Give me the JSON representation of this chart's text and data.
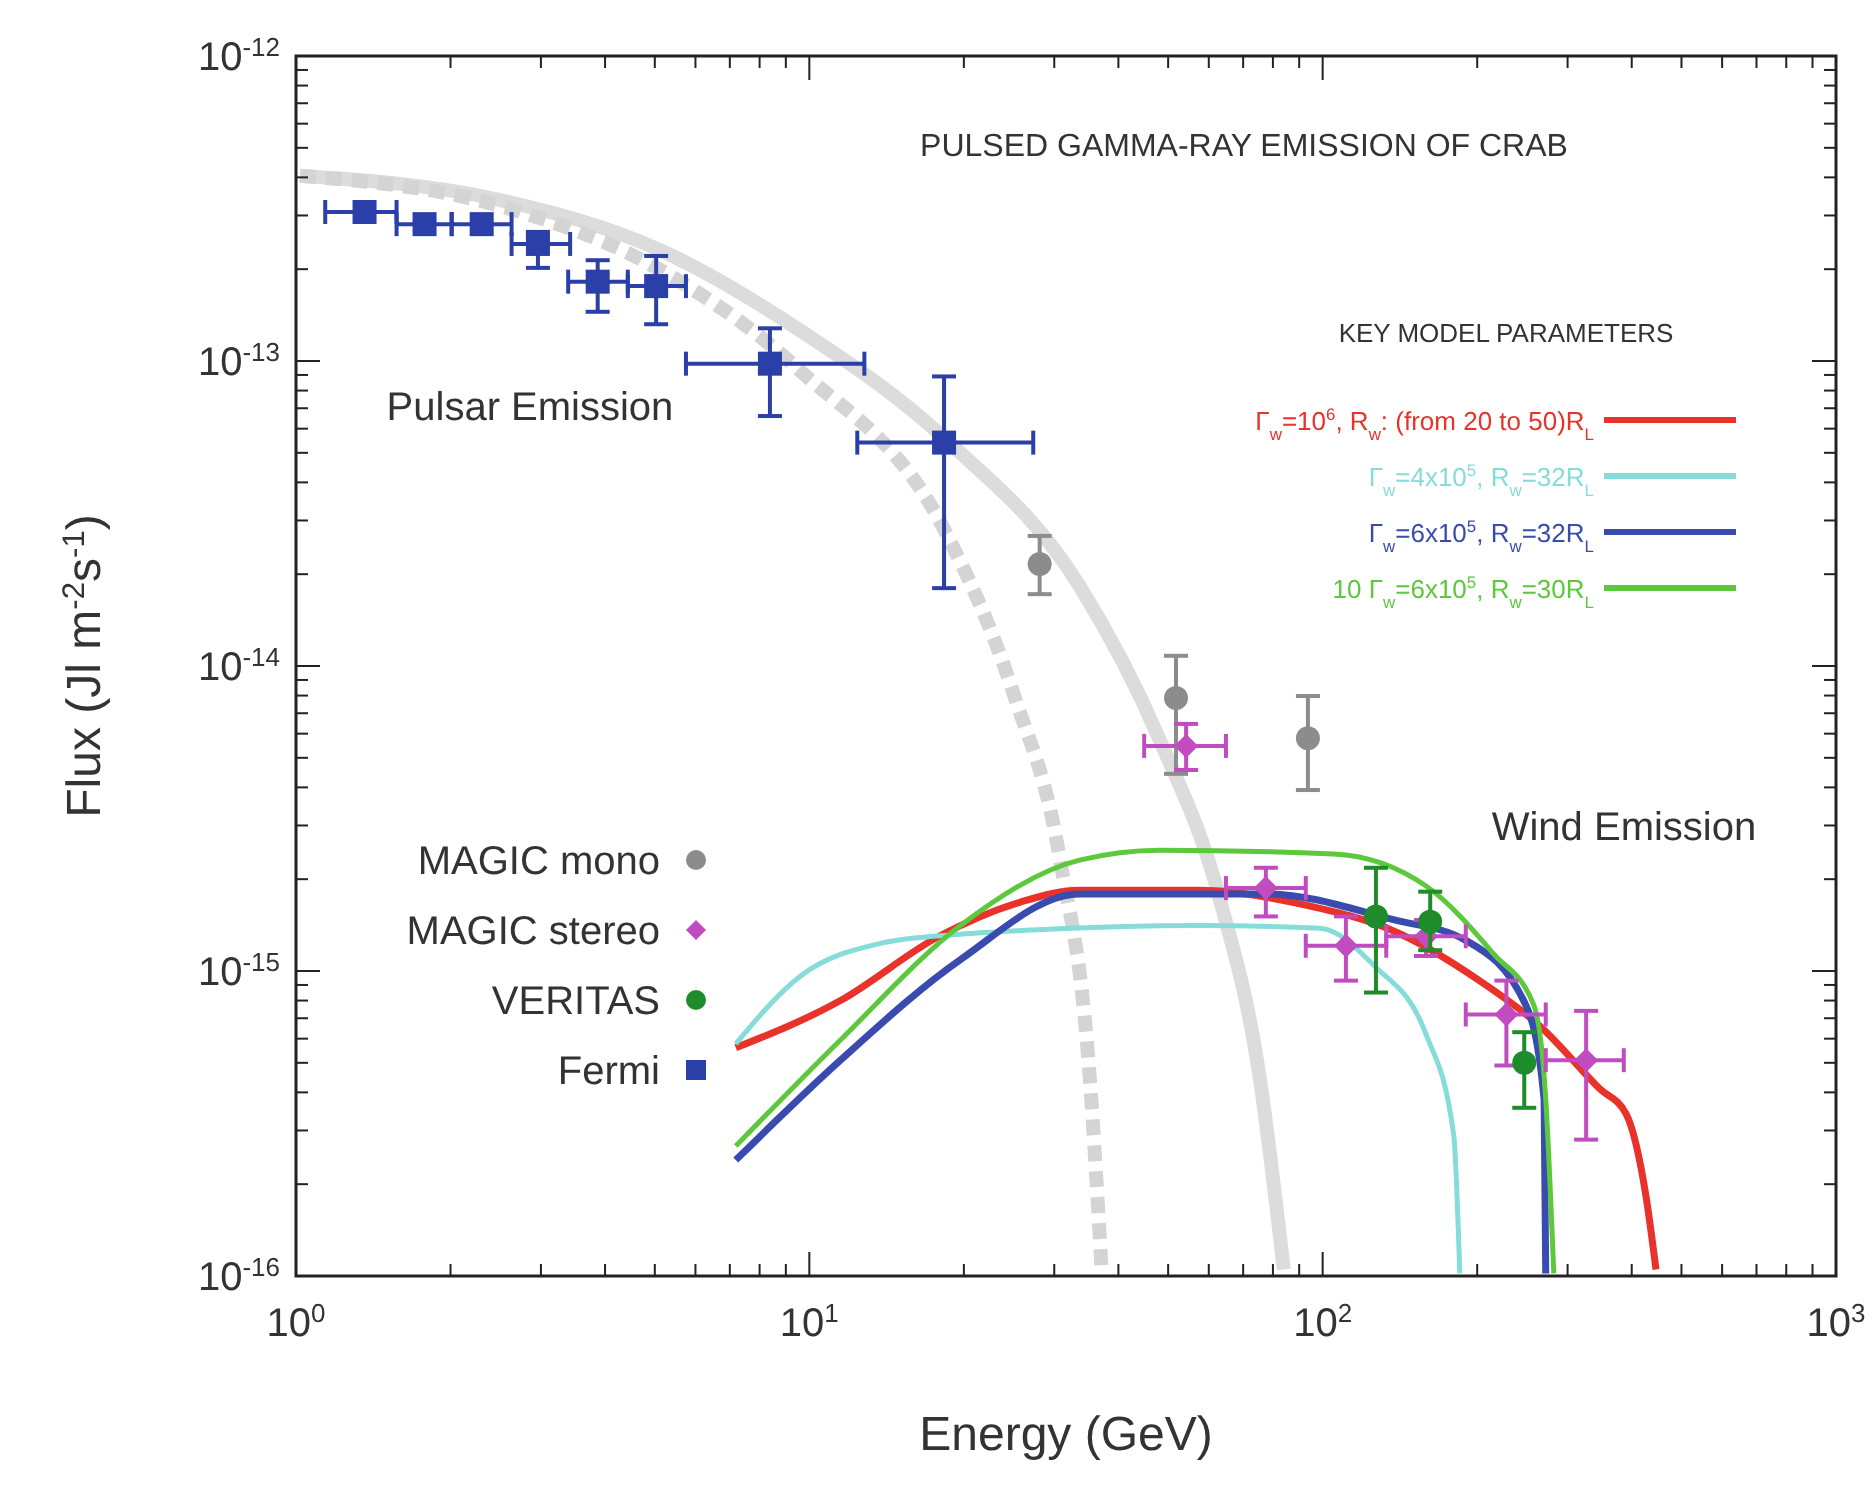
{
  "chart_data": {
    "type": "scatter",
    "title": "PULSED GAMMA-RAY EMISSION OF CRAB",
    "xlabel": "Energy (GeV)",
    "ylabel": "Flux (Jl m$^{-2}$s$^{-1}$)",
    "legend_title": "KEY MODEL PARAMETERS",
    "log": "xy",
    "legend": "left",
    "grid": false,
    "xlim": [
      1,
      1000
    ],
    "ylim": [
      1e-16,
      1e-12
    ],
    "xticks": [
      {
        "value": 1,
        "label": "10$^{0}$"
      },
      {
        "value": 10,
        "label": "10$^{1}$"
      },
      {
        "value": 100,
        "label": "10$^{2}$"
      },
      {
        "value": 1000,
        "label": "10$^{3}$"
      }
    ],
    "yticks": [
      {
        "value": 1e-16,
        "label": "10$^{-16}$"
      },
      {
        "value": 1e-15,
        "label": "10$^{-15}$"
      },
      {
        "value": 1e-14,
        "label": "10$^{-14}$"
      },
      {
        "value": 1e-13,
        "label": "10$^{-13}$"
      },
      {
        "value": 1e-12,
        "label": "10$^{-12}$"
      }
    ],
    "annotations": [
      "Pulsar Emission",
      "Wind Emission"
    ],
    "series": [
      {
        "type": "line",
        "color": "#dcdcdc",
        "line_style": "solid",
        "x": [
          1.018,
          2.5,
          5.12,
          9.59,
          18.5,
          33.6,
          48.2,
          63.1,
          75.5,
          84.0
        ],
        "values": [
          4.05e-13,
          3.37e-13,
          2.31e-13,
          1.26e-13,
          5.5e-14,
          1.83e-14,
          5.7e-15,
          1.71e-15,
          4.4e-16,
          1.05e-16
        ]
      },
      {
        "type": "line",
        "color": "#d4d4d4",
        "line_style": "dashed",
        "x": [
          1.018,
          2.5,
          5.12,
          9.59,
          18.5,
          25.0,
          30.8,
          35.2,
          37.1
        ],
        "values": [
          4.05e-13,
          3.22e-13,
          1.99e-13,
          9.3e-14,
          2.71e-14,
          8.1e-15,
          2.31e-15,
          4.4e-16,
          1.05e-16
        ]
      },
      {
        "type": "line",
        "name": "Γ$_{w}$=10$^{6}$, R$_{w}$: (from 20 to 50)R$_{L}$",
        "color": "#e8322a",
        "line_style": "solid",
        "x": [
          7.19,
          11.5,
          17.9,
          25.7,
          33.6,
          57.7,
          90.3,
          142,
          202,
          265,
          347,
          390,
          427,
          446
        ],
        "values": [
          5.6e-16,
          8e-16,
          1.3e-15,
          1.68e-15,
          1.84e-15,
          1.84e-15,
          1.66e-15,
          1.32e-15,
          9.3e-16,
          6.6e-16,
          4.1e-16,
          3.4e-16,
          1.8e-16,
          1.05e-16
        ]
      },
      {
        "type": "line",
        "name": "Γ$_{w}$=4x10$^{5}$, R$_{w}$=32R$_{L}$",
        "color": "#86dcd8",
        "line_style": "solid",
        "x": [
          7.19,
          9.59,
          13.7,
          19.7,
          26.4,
          57.7,
          98.8,
          126,
          159,
          180,
          185
        ],
        "values": [
          5.77e-16,
          9.6e-16,
          1.23e-15,
          1.32e-15,
          1.36e-15,
          1.41e-15,
          1.38e-15,
          1.04e-15,
          6.2e-16,
          2.9e-16,
          1.02e-16
        ]
      },
      {
        "type": "line",
        "name": "Γ$_{w}$=6x10$^{5}$, R$_{w}$=32R$_{L}$",
        "color": "#3a4bb0",
        "line_style": "solid",
        "x": [
          7.19,
          11.5,
          19.7,
          33.6,
          77.5,
          138,
          190,
          249,
          270,
          272
        ],
        "values": [
          2.4e-16,
          5.1e-16,
          1.09e-15,
          1.79e-15,
          1.79e-15,
          1.47e-15,
          1.26e-15,
          7.7e-16,
          3.8e-16,
          1.02e-16
        ]
      },
      {
        "type": "line",
        "name": "10 Γ$_{w}$=6x10$^{5}$, R$_{w}$=30R$_{L}$",
        "color": "#5cc83c",
        "line_style": "solid",
        "x": [
          7.19,
          11.5,
          19.7,
          33.6,
          48.2,
          105,
          159,
          215,
          258,
          272,
          282
        ],
        "values": [
          2.67e-16,
          5.94e-16,
          1.41e-15,
          2.31e-15,
          2.49e-15,
          2.42e-15,
          1.9e-15,
          1.14e-15,
          7.7e-16,
          3.8e-16,
          1.02e-16
        ]
      },
      {
        "name": "MAGIC mono",
        "color": "#8c8c8c",
        "marker": "circle",
        "x": [
          28.1,
          51.8,
          93.6
        ],
        "values": [
          2.16e-14,
          7.85e-15,
          5.8e-15
        ],
        "errors": [
          [
            1.72e-14,
            2.67e-14
          ],
          [
            4.43e-15,
            1.08e-14
          ],
          [
            3.92e-15,
            7.97e-15
          ]
        ]
      },
      {
        "name": "MAGIC stereo",
        "color": "#c04cc0",
        "marker": "diamond",
        "x": [
          54.2,
          77.5,
          111,
          159,
          228,
          326
        ],
        "values": [
          5.47e-15,
          1.87e-15,
          1.21e-15,
          1.3e-15,
          7.2e-16,
          5.1e-16
        ],
        "errors": [
          [
            4.56e-15,
            6.46e-15
          ],
          [
            1.51e-15,
            2.18e-15
          ],
          [
            9.3e-16,
            1.51e-15
          ],
          [
            1.12e-15,
            1.47e-15
          ],
          [
            4.9e-16,
            9.3e-16
          ],
          [
            2.8e-16,
            7.4e-16
          ]
        ],
        "xerrors": [
          [
            44.9,
            64.8
          ],
          [
            64.8,
            92.7
          ],
          [
            92.7,
            133
          ],
          [
            133,
            190
          ],
          [
            190,
            272
          ],
          [
            272,
            386
          ]
        ]
      },
      {
        "name": "VERITAS",
        "color": "#1e8c2a",
        "marker": "circle",
        "x": [
          127,
          162,
          247
        ],
        "values": [
          1.51e-15,
          1.45e-15,
          5e-16
        ],
        "errors": [
          [
            8.5e-16,
            2.18e-15
          ],
          [
            1.17e-15,
            1.82e-15
          ],
          [
            3.56e-16,
            6.3e-16
          ]
        ]
      },
      {
        "name": "Fermi",
        "color": "#2a3fa8",
        "marker": "square",
        "x": [
          1.36,
          1.78,
          2.3,
          2.96,
          3.87,
          5.03,
          8.38,
          18.3
        ],
        "values": [
          3.08e-13,
          2.81e-13,
          2.81e-13,
          2.42e-13,
          1.82e-13,
          1.76e-13,
          9.8e-14,
          5.4e-14
        ],
        "errors": [
          null,
          null,
          null,
          [
            2.02e-13,
            2.65e-13
          ],
          [
            1.45e-13,
            2.14e-13
          ],
          [
            1.32e-13,
            2.21e-13
          ],
          [
            6.6e-14,
            1.28e-13
          ],
          [
            1.8e-14,
            8.9e-14
          ]
        ],
        "xerrors": [
          [
            1.14,
            1.57
          ],
          [
            1.57,
            2.01
          ],
          [
            2.01,
            2.63
          ],
          [
            2.63,
            3.42
          ],
          [
            3.39,
            4.43
          ],
          [
            4.43,
            5.75
          ],
          [
            5.75,
            12.8
          ],
          [
            12.4,
            27.3
          ]
        ]
      }
    ]
  }
}
